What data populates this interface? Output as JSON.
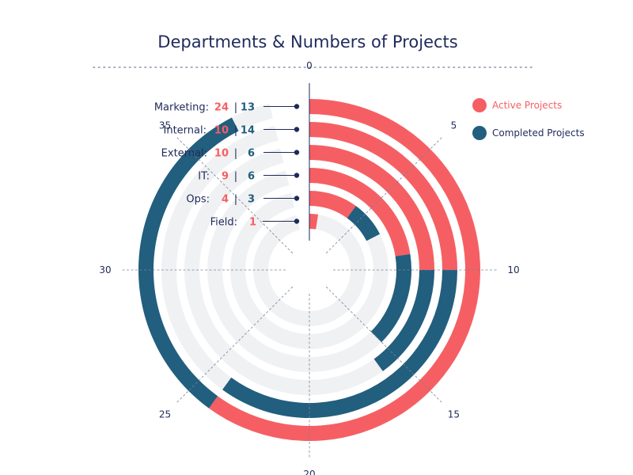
{
  "title": "Departments & Numbers of Projects",
  "chart_data": {
    "type": "radial_bar",
    "title": "Departments & Numbers of Projects",
    "categories": [
      "Marketing",
      "Internal",
      "External",
      "IT",
      "Ops",
      "Field"
    ],
    "category_labels": [
      "Marketing:",
      "Internal:",
      "External:",
      "IT:",
      "Ops:",
      "Field:"
    ],
    "series": [
      {
        "name": "Active Projects",
        "color": "#f55f63",
        "values": [
          24,
          10,
          10,
          9,
          4,
          1
        ]
      },
      {
        "name": "Completed Projects",
        "color": "#225e7e",
        "values": [
          13,
          14,
          6,
          6,
          3,
          0
        ]
      }
    ],
    "value_text": [
      [
        "24",
        "13"
      ],
      [
        "10",
        "14"
      ],
      [
        "10",
        "6"
      ],
      [
        "9",
        "6"
      ],
      [
        "4",
        "3"
      ],
      [
        "1",
        ""
      ]
    ],
    "separator": "|",
    "ticks": [
      0,
      5,
      10,
      15,
      20,
      25,
      30,
      35
    ],
    "tick_labels": [
      "0",
      "5",
      "10",
      "15",
      "20",
      "25",
      "30",
      "35"
    ],
    "axis_max": 40,
    "track_color": "#f0f1f3",
    "text_color": "#1f2a5a"
  }
}
